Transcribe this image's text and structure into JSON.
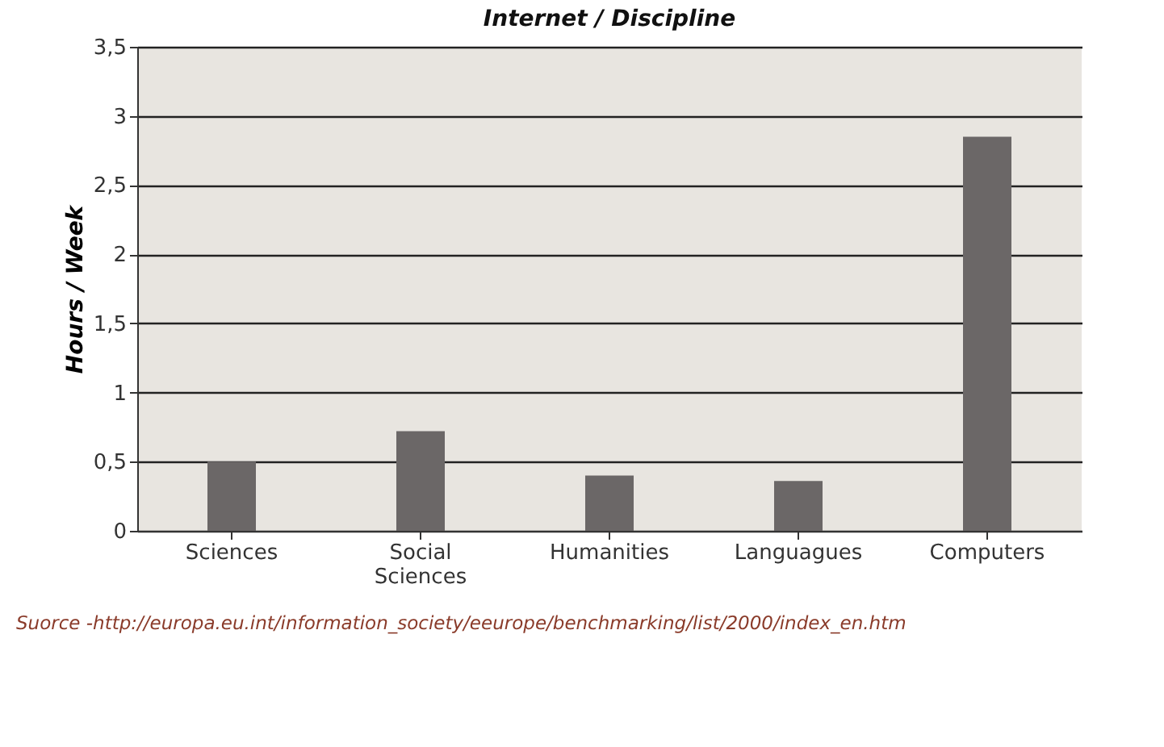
{
  "chart_data": {
    "type": "bar",
    "title": "Internet / Discipline",
    "ylabel": "Hours / Week",
    "categories": [
      "Sciences",
      "Social Sciences",
      "Humanities",
      "Languagues",
      "Computers"
    ],
    "values": [
      0.5,
      0.72,
      0.4,
      0.36,
      2.85
    ],
    "color": "#6b6767",
    "ylim": [
      0,
      3.5
    ],
    "yticks": [
      0,
      {
        "value": 0.5,
        "label": "0,5"
      },
      1,
      {
        "value": 1.5,
        "label": "1,5"
      },
      2,
      {
        "value": 2.5,
        "label": "2,5"
      },
      3,
      {
        "value": 3.5,
        "label": "3,5"
      }
    ],
    "grid": "y",
    "annotations": [
      "Suorce -http://europa.eu.int/information_society/eeurope/benchmarking/list/2000/index_en.htm"
    ]
  }
}
